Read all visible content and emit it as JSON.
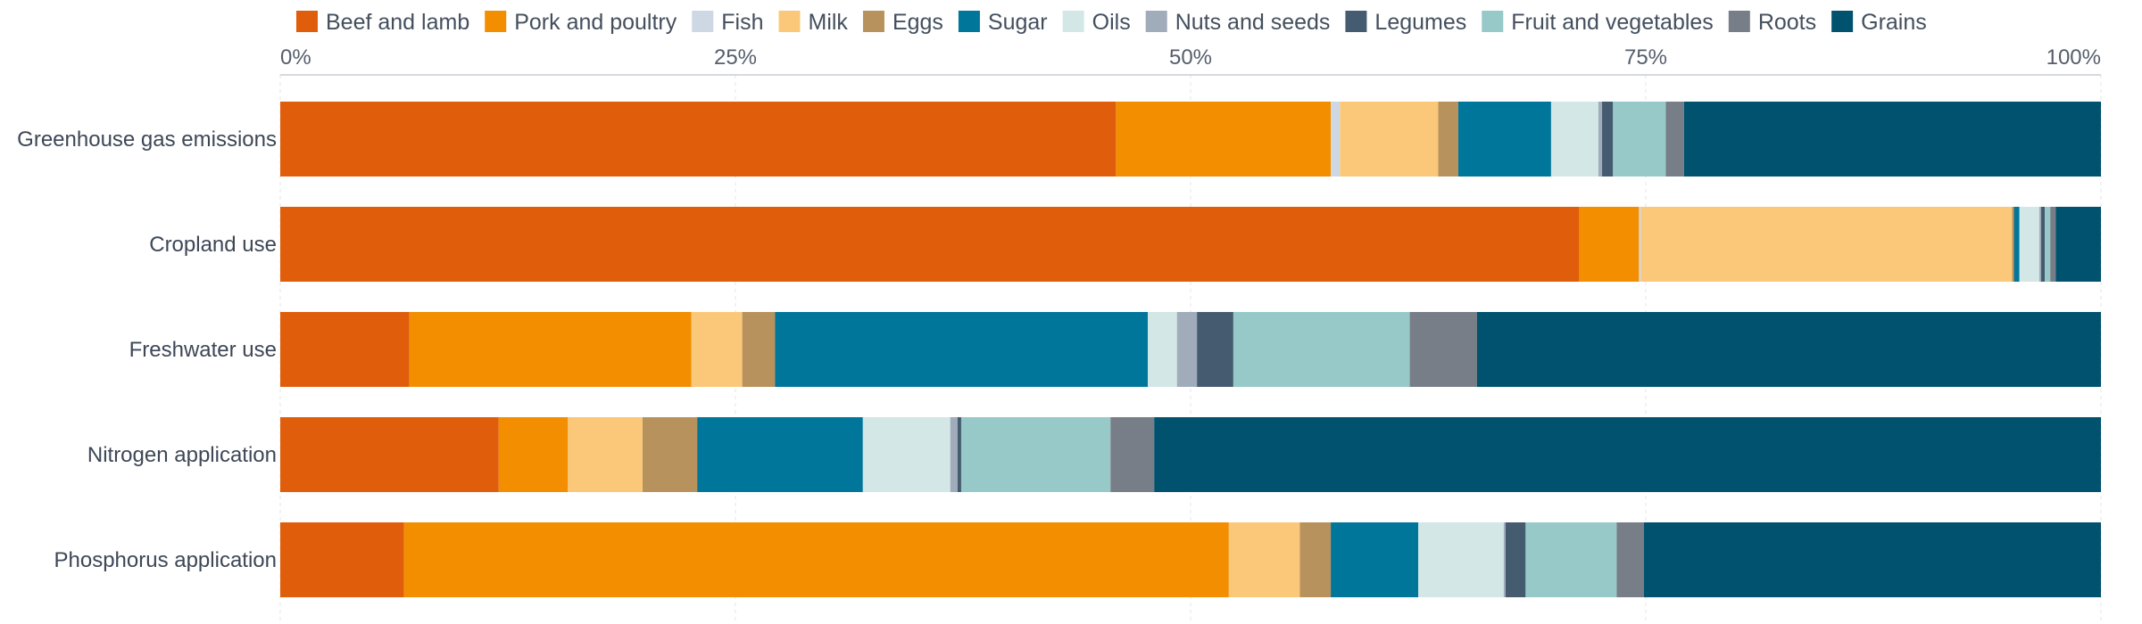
{
  "chart_data": {
    "type": "bar",
    "orientation": "horizontal",
    "stacked": true,
    "normalized": true,
    "categories": [
      "Greenhouse gas emissions",
      "Cropland use",
      "Freshwater use",
      "Nitrogen application",
      "Phosphorus application"
    ],
    "x_ticks": [
      "0%",
      "25%",
      "50%",
      "75%",
      "100%"
    ],
    "xlim": [
      0,
      100
    ],
    "grid": true,
    "legend_position": "top",
    "series": [
      {
        "name": "Beef and lamb",
        "color": "#e05d0b",
        "values": [
          45.9,
          71.7,
          7.1,
          12.0,
          6.8
        ]
      },
      {
        "name": "Pork and poultry",
        "color": "#f28e00",
        "values": [
          11.8,
          3.3,
          15.5,
          3.8,
          45.3
        ]
      },
      {
        "name": "Fish",
        "color": "#cdd8e4",
        "values": [
          0.5,
          0.1,
          0.0,
          0.0,
          0.0
        ]
      },
      {
        "name": "Milk",
        "color": "#fbc87a",
        "values": [
          5.4,
          20.5,
          2.8,
          4.1,
          3.9
        ]
      },
      {
        "name": "Eggs",
        "color": "#b8925c",
        "values": [
          1.1,
          0.1,
          1.8,
          3.0,
          1.7
        ]
      },
      {
        "name": "Sugar",
        "color": "#00769a",
        "values": [
          5.1,
          0.3,
          20.5,
          9.1,
          4.8
        ]
      },
      {
        "name": "Oils",
        "color": "#d2e7e6",
        "values": [
          2.6,
          1.1,
          1.6,
          4.8,
          4.7
        ]
      },
      {
        "name": "Nuts and seeds",
        "color": "#a1acba",
        "values": [
          0.2,
          0.1,
          1.1,
          0.4,
          0.1
        ]
      },
      {
        "name": "Legumes",
        "color": "#455c70",
        "values": [
          0.6,
          0.2,
          2.0,
          0.2,
          1.1
        ]
      },
      {
        "name": "Fruit and vegetables",
        "color": "#96c9c8",
        "values": [
          2.9,
          0.3,
          9.7,
          8.2,
          5.0
        ]
      },
      {
        "name": "Roots",
        "color": "#777e88",
        "values": [
          1.0,
          0.3,
          3.7,
          2.4,
          1.5
        ]
      },
      {
        "name": "Grains",
        "color": "#01526f",
        "values": [
          22.9,
          2.5,
          34.3,
          52.0,
          25.1
        ]
      }
    ]
  }
}
